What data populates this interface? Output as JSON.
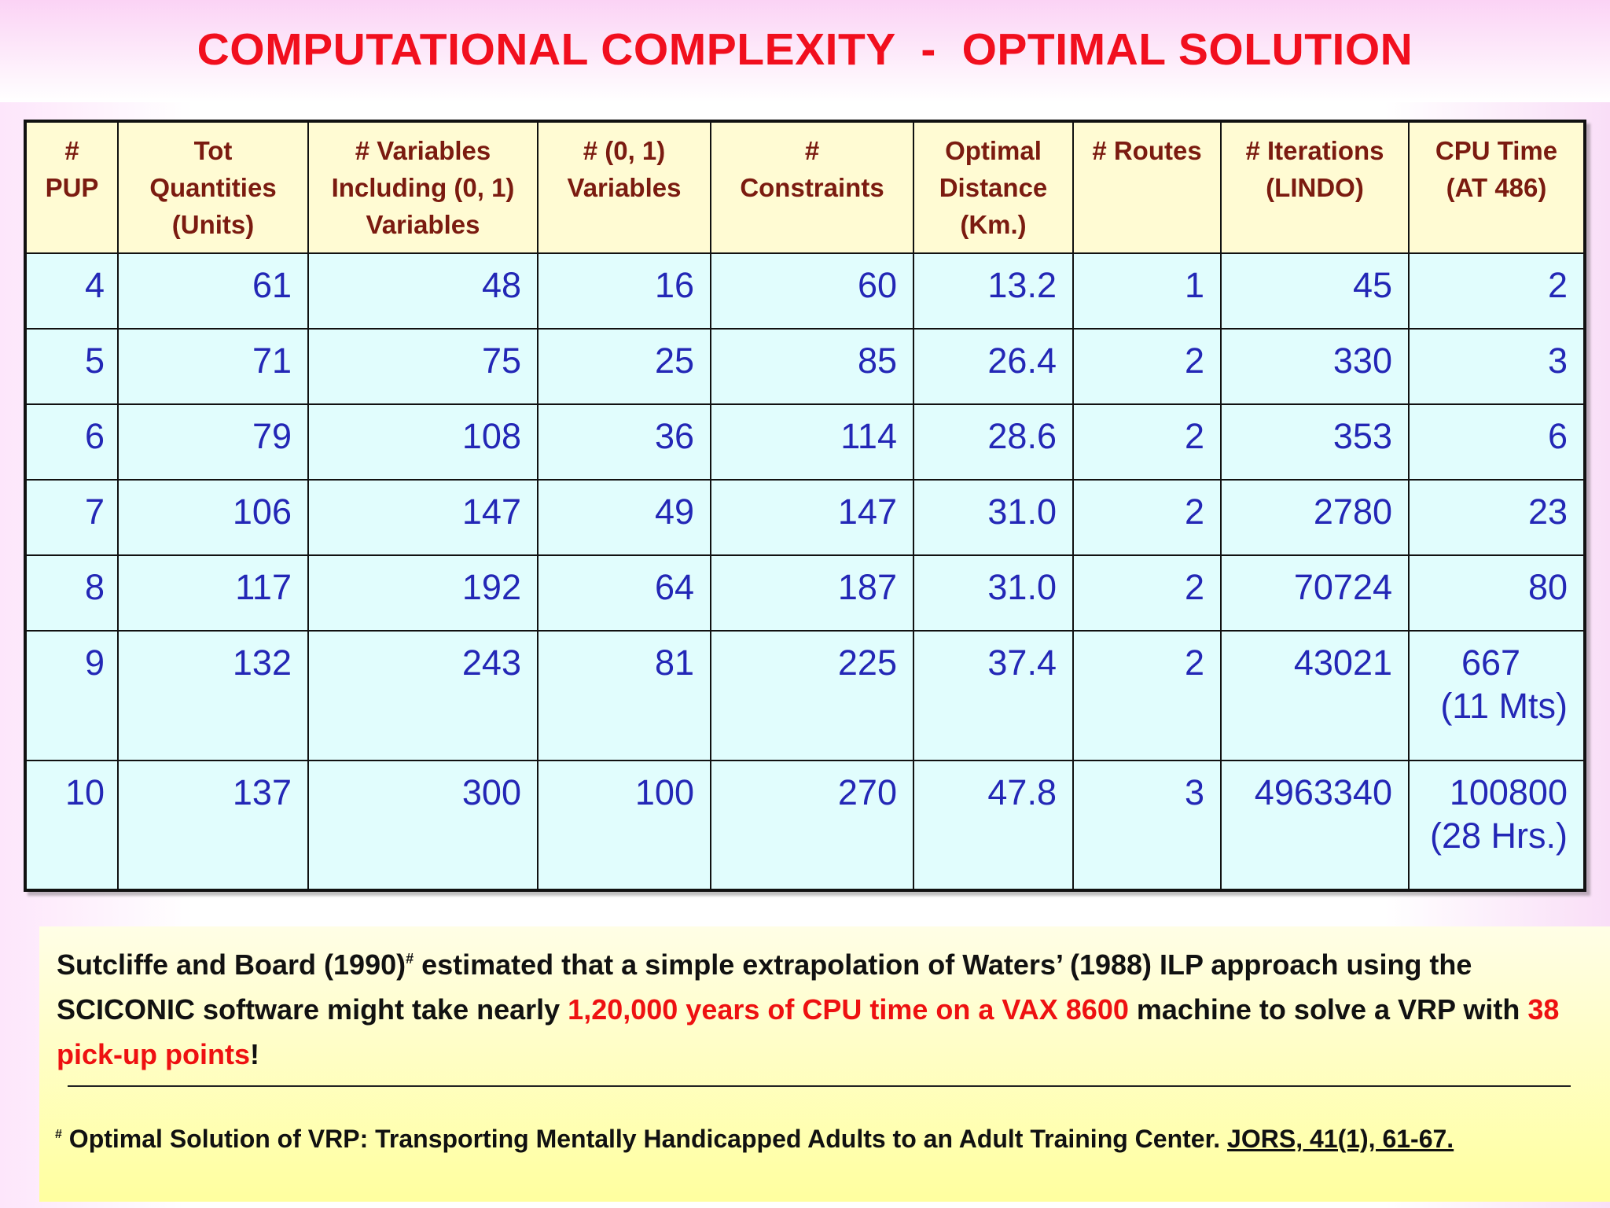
{
  "title": "COMPUTATIONAL COMPLEXITY  -  OPTIMAL SOLUTION",
  "table": {
    "headers": [
      [
        "#",
        "PUP"
      ],
      [
        "Tot",
        "Quantities",
        "(Units)"
      ],
      [
        "# Variables",
        "Including (0, 1)",
        "Variables"
      ],
      [
        "# (0, 1)",
        "Variables"
      ],
      [
        "#",
        "Constraints"
      ],
      [
        "Optimal",
        "Distance",
        "(Km.)"
      ],
      [
        "# Routes"
      ],
      [
        "# Iterations",
        "(LINDO)"
      ],
      [
        "CPU Time",
        "(AT 486)"
      ]
    ],
    "rows": [
      {
        "pup": "4",
        "qty": "61",
        "vars": "48",
        "bin": "16",
        "cons": "60",
        "dist": "13.2",
        "routes": "1",
        "iter": "45",
        "cpu": "2",
        "cpu_note": ""
      },
      {
        "pup": "5",
        "qty": "71",
        "vars": "75",
        "bin": "25",
        "cons": "85",
        "dist": "26.4",
        "routes": "2",
        "iter": "330",
        "cpu": "3",
        "cpu_note": ""
      },
      {
        "pup": "6",
        "qty": "79",
        "vars": "108",
        "bin": "36",
        "cons": "114",
        "dist": "28.6",
        "routes": "2",
        "iter": "353",
        "cpu": "6",
        "cpu_note": ""
      },
      {
        "pup": "7",
        "qty": "106",
        "vars": "147",
        "bin": "49",
        "cons": "147",
        "dist": "31.0",
        "routes": "2",
        "iter": "2780",
        "cpu": "23",
        "cpu_note": ""
      },
      {
        "pup": "8",
        "qty": "117",
        "vars": "192",
        "bin": "64",
        "cons": "187",
        "dist": "31.0",
        "routes": "2",
        "iter": "70724",
        "cpu": "80",
        "cpu_note": ""
      },
      {
        "pup": "9",
        "qty": "132",
        "vars": "243",
        "bin": "81",
        "cons": "225",
        "dist": "37.4",
        "routes": "2",
        "iter": "43021",
        "cpu": "667",
        "cpu_note": "(11 Mts)"
      },
      {
        "pup": "10",
        "qty": "137",
        "vars": "300",
        "bin": "100",
        "cons": "270",
        "dist": "47.8",
        "routes": "3",
        "iter": "4963340",
        "cpu": "100800",
        "cpu_note": "(28 Hrs.)"
      }
    ]
  },
  "note": {
    "p1": "Sutcliffe and Board (1990)",
    "mark": "#",
    "p2": " estimated that a simple extrapolation of Waters’ (1988) ILP approach using the SCICONIC software might take nearly ",
    "highlight1": "1,20,000 years of CPU time on a VAX 8600",
    "p3": " machine to solve a VRP with ",
    "highlight2": "38 pick-up points",
    "p4": "!"
  },
  "footnote": {
    "mark": "#",
    "text": " Optimal Solution of VRP: Transporting Mentally Handicapped Adults to an Adult Training Center. ",
    "citation": "JORS, 41(1), 61-67."
  },
  "colors": {
    "title": "#f10f1e",
    "header_bg": "#fffbd3",
    "header_text": "#7b1b10",
    "cell_bg": "#e1fdfd",
    "cell_text": "#2327b6",
    "highlight": "#ee1111",
    "note_bg": "#ffff9f"
  }
}
